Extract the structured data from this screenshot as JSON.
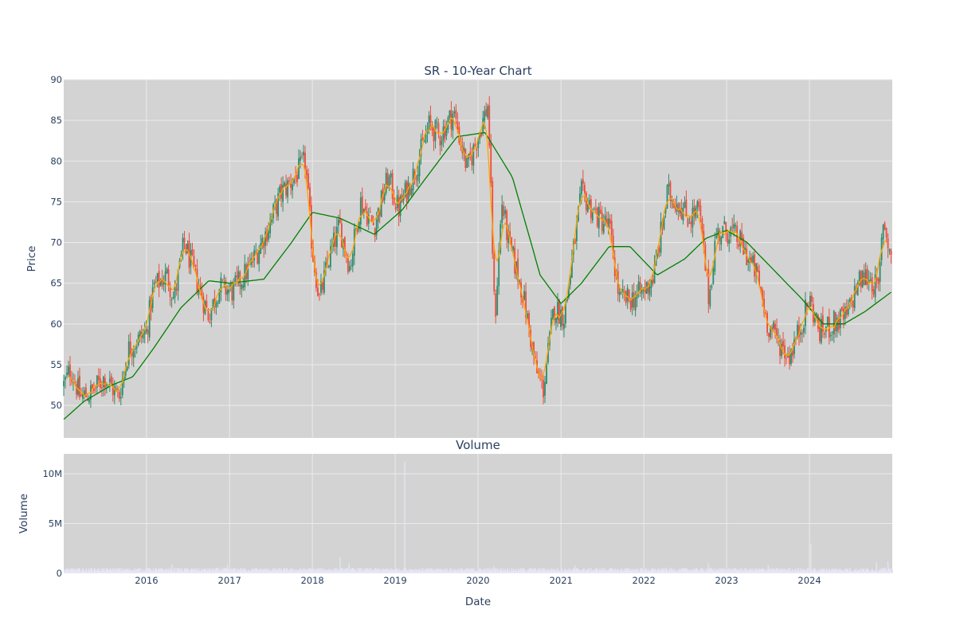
{
  "chart_data": [
    {
      "type": "candlestick",
      "title": "SR - 10-Year Chart",
      "ylabel": "Price",
      "xlabel": "",
      "ylim": [
        46,
        90
      ],
      "xlim": [
        "2015-01-01",
        "2024-12-31"
      ],
      "y_ticks": [
        50,
        55,
        60,
        65,
        70,
        75,
        80,
        85,
        90
      ],
      "x_ticks": [
        "2016",
        "2017",
        "2018",
        "2019",
        "2020",
        "2021",
        "2022",
        "2023",
        "2024"
      ],
      "grid": true,
      "colors": {
        "plot_bg": "#d3d3d3",
        "increasing": "#2e8b6b",
        "decreasing": "#ef4b3a",
        "ma_short": "#ffa500",
        "ma_long": "#008000",
        "grid": "#ebebeb"
      },
      "close_keypoints": [
        [
          "2015-01-02",
          52.5
        ],
        [
          "2015-02-01",
          54.5
        ],
        [
          "2015-03-15",
          51.0
        ],
        [
          "2015-05-01",
          51.5
        ],
        [
          "2015-07-01",
          53.5
        ],
        [
          "2015-09-01",
          51.0
        ],
        [
          "2015-10-15",
          57.0
        ],
        [
          "2015-12-31",
          59.0
        ],
        [
          "2016-02-01",
          64.5
        ],
        [
          "2016-04-01",
          66.0
        ],
        [
          "2016-05-01",
          63.0
        ],
        [
          "2016-06-15",
          70.0
        ],
        [
          "2016-08-01",
          66.0
        ],
        [
          "2016-10-01",
          61.0
        ],
        [
          "2016-11-15",
          64.5
        ],
        [
          "2017-01-15",
          64.0
        ],
        [
          "2017-04-01",
          67.0
        ],
        [
          "2017-06-15",
          71.5
        ],
        [
          "2017-08-15",
          76.0
        ],
        [
          "2017-10-15",
          78.0
        ],
        [
          "2017-12-01",
          80.0
        ],
        [
          "2018-01-01",
          69.0
        ],
        [
          "2018-02-01",
          63.0
        ],
        [
          "2018-03-15",
          68.0
        ],
        [
          "2018-05-01",
          72.0
        ],
        [
          "2018-06-15",
          67.0
        ],
        [
          "2018-08-01",
          75.0
        ],
        [
          "2018-10-01",
          72.0
        ],
        [
          "2018-12-01",
          78.0
        ],
        [
          "2019-01-15",
          74.0
        ],
        [
          "2019-04-01",
          79.0
        ],
        [
          "2019-06-01",
          84.5
        ],
        [
          "2019-07-15",
          83.0
        ],
        [
          "2019-09-15",
          86.0
        ],
        [
          "2019-11-15",
          79.0
        ],
        [
          "2020-02-15",
          87.0
        ],
        [
          "2020-03-15",
          60.0
        ],
        [
          "2020-04-15",
          75.0
        ],
        [
          "2020-05-15",
          70.0
        ],
        [
          "2020-07-15",
          64.0
        ],
        [
          "2020-09-15",
          54.0
        ],
        [
          "2020-10-15",
          52.0
        ],
        [
          "2020-12-01",
          62.0
        ],
        [
          "2021-01-15",
          61.0
        ],
        [
          "2021-04-01",
          76.0
        ],
        [
          "2021-06-15",
          73.0
        ],
        [
          "2021-08-01",
          72.0
        ],
        [
          "2021-09-15",
          63.0
        ],
        [
          "2021-11-01",
          63.0
        ],
        [
          "2022-01-01",
          64.0
        ],
        [
          "2022-02-15",
          66.0
        ],
        [
          "2022-04-15",
          76.0
        ],
        [
          "2022-06-01",
          75.0
        ],
        [
          "2022-07-15",
          73.0
        ],
        [
          "2022-09-01",
          74.0
        ],
        [
          "2022-10-15",
          63.0
        ],
        [
          "2022-11-15",
          71.0
        ],
        [
          "2023-01-15",
          71.5
        ],
        [
          "2023-03-01",
          70.0
        ],
        [
          "2023-05-15",
          66.0
        ],
        [
          "2023-07-01",
          60.0
        ],
        [
          "2023-08-15",
          58.0
        ],
        [
          "2023-10-01",
          56.0
        ],
        [
          "2023-11-15",
          59.0
        ],
        [
          "2024-01-01",
          63.0
        ],
        [
          "2024-02-15",
          59.0
        ],
        [
          "2024-04-15",
          60.0
        ],
        [
          "2024-06-15",
          61.0
        ],
        [
          "2024-08-01",
          65.0
        ],
        [
          "2024-09-15",
          66.0
        ],
        [
          "2024-11-01",
          64.0
        ],
        [
          "2024-11-20",
          73.0
        ],
        [
          "2024-12-31",
          67.5
        ]
      ],
      "ma_long_keypoints": [
        [
          "2015-01-02",
          48.3
        ],
        [
          "2015-04-01",
          50.5
        ],
        [
          "2015-08-01",
          52.5
        ],
        [
          "2015-11-01",
          53.5
        ],
        [
          "2016-02-01",
          57.0
        ],
        [
          "2016-06-01",
          62.0
        ],
        [
          "2016-10-01",
          65.3
        ],
        [
          "2017-01-01",
          65.0
        ],
        [
          "2017-06-01",
          65.5
        ],
        [
          "2017-10-01",
          70.0
        ],
        [
          "2018-01-01",
          73.7
        ],
        [
          "2018-05-01",
          73.0
        ],
        [
          "2018-10-01",
          71.0
        ],
        [
          "2019-02-01",
          74.0
        ],
        [
          "2019-06-01",
          78.5
        ],
        [
          "2019-10-01",
          83.0
        ],
        [
          "2020-02-01",
          83.5
        ],
        [
          "2020-06-01",
          78.0
        ],
        [
          "2020-10-01",
          66.0
        ],
        [
          "2021-01-01",
          62.5
        ],
        [
          "2021-04-01",
          65.0
        ],
        [
          "2021-08-01",
          69.5
        ],
        [
          "2021-11-01",
          69.5
        ],
        [
          "2022-03-01",
          66.0
        ],
        [
          "2022-07-01",
          68.0
        ],
        [
          "2022-10-01",
          70.5
        ],
        [
          "2023-01-01",
          71.5
        ],
        [
          "2023-04-01",
          70.0
        ],
        [
          "2023-08-01",
          66.5
        ],
        [
          "2023-12-01",
          63.0
        ],
        [
          "2024-03-01",
          60.0
        ],
        [
          "2024-06-01",
          60.0
        ],
        [
          "2024-09-01",
          61.5
        ],
        [
          "2024-12-31",
          64.0
        ]
      ]
    },
    {
      "type": "bar",
      "title": "Volume",
      "xlabel": "Date",
      "ylabel": "Volume",
      "ylim": [
        0,
        12000000
      ],
      "y_ticks": [
        0,
        5000000,
        10000000
      ],
      "y_tick_labels": [
        "0",
        "5M",
        "10M"
      ],
      "x_ticks": [
        "2016",
        "2017",
        "2018",
        "2019",
        "2020",
        "2021",
        "2022",
        "2023",
        "2024"
      ],
      "typical_volume": 350000,
      "spikes": [
        [
          "2016-04-20",
          900000
        ],
        [
          "2016-12-20",
          900000
        ],
        [
          "2018-05-01",
          1600000
        ],
        [
          "2018-06-10",
          1000000
        ],
        [
          "2019-02-10",
          11200000
        ],
        [
          "2020-03-10",
          700000
        ],
        [
          "2021-03-01",
          800000
        ],
        [
          "2022-10-10",
          1000000
        ],
        [
          "2023-07-01",
          800000
        ],
        [
          "2024-01-05",
          3000000
        ],
        [
          "2024-10-20",
          1100000
        ],
        [
          "2024-12-10",
          1200000
        ]
      ],
      "colors": {
        "bar": "#e6e6f5"
      }
    }
  ]
}
